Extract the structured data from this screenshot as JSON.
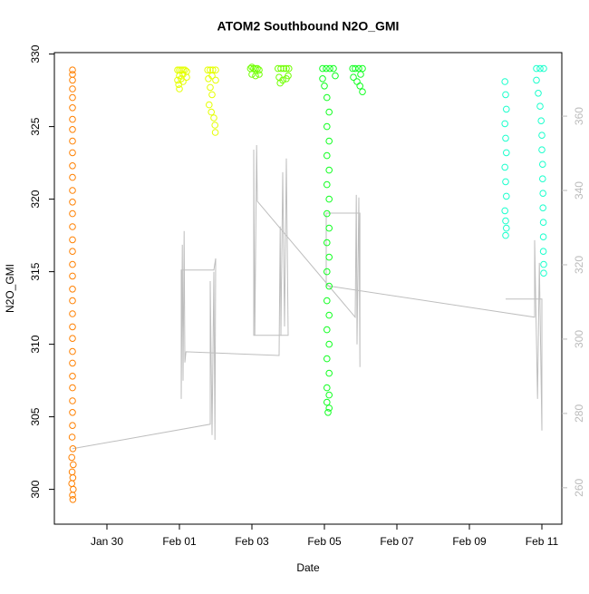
{
  "chart_data": {
    "type": "scatter",
    "title": "ATOM2 Southbound N2O_GMI",
    "x_label": "Date",
    "y_label": "N2O_GMI",
    "xlim": [
      28.55,
      42.55
    ],
    "xticks": [
      {
        "value": 30,
        "label": "Jan 30"
      },
      {
        "value": 32,
        "label": "Feb 01"
      },
      {
        "value": 34,
        "label": "Feb 03"
      },
      {
        "value": 36,
        "label": "Feb 05"
      },
      {
        "value": 38,
        "label": "Feb 07"
      },
      {
        "value": 40,
        "label": "Feb 09"
      },
      {
        "value": 42,
        "label": "Feb 11"
      }
    ],
    "ylim": [
      297.6,
      330.1
    ],
    "yticks": [
      300,
      305,
      310,
      315,
      320,
      325,
      330
    ],
    "y2lim": [
      250.2,
      377.1
    ],
    "y2ticks": [
      260,
      280,
      300,
      320,
      340,
      360
    ],
    "series": [
      {
        "color": "#FF8000",
        "x": [
          29.05,
          29.05,
          29.05,
          29.05,
          29.05,
          29.05,
          29.05,
          29.05,
          29.05,
          29.05,
          29.05,
          29.05,
          29.05,
          29.05,
          29.05,
          29.05,
          29.05,
          29.05,
          29.05,
          29.05,
          29.05,
          29.05,
          29.05,
          29.05,
          29.05,
          29.05,
          29.05,
          29.05,
          29.05,
          29.05,
          29.05,
          29.05,
          29.04,
          29.06,
          29.03,
          29.07,
          29.04,
          29.06,
          29.03,
          29.07,
          29.05,
          29.06
        ],
        "values": [
          328.9,
          328.6,
          328.2,
          327.6,
          327,
          326.3,
          325.5,
          324.8,
          324,
          323.2,
          322.3,
          321.5,
          320.6,
          319.8,
          319,
          318.1,
          317.2,
          316.4,
          315.5,
          314.7,
          313.8,
          313,
          312.1,
          311.2,
          310.4,
          309.5,
          308.7,
          307.8,
          307,
          306.1,
          305.3,
          304.4,
          303.6,
          302.8,
          302.2,
          301.7,
          301.2,
          300.8,
          300.4,
          300,
          299.6,
          299.3
        ]
      },
      {
        "color": "#E5FF00",
        "x": [
          31.95,
          32.0,
          32.05,
          32.1,
          32.15,
          32.2,
          32.0,
          32.05,
          32.1,
          31.98,
          32.0,
          32.1,
          32.2,
          31.95,
          32.78,
          32.85,
          32.92,
          33.0,
          32.8,
          32.85,
          32.9,
          32.82,
          32.88,
          32.95,
          32.98,
          32.99,
          33.0,
          32.9
        ],
        "values": [
          328.9,
          328.9,
          328.9,
          328.9,
          328.9,
          328.8,
          328.5,
          328.3,
          328.1,
          327.9,
          327.6,
          328.6,
          328.4,
          328.2,
          328.9,
          328.9,
          328.9,
          328.9,
          328.3,
          327.7,
          327.2,
          326.5,
          326,
          325.6,
          325.1,
          324.6,
          328.2,
          328.5
        ]
      },
      {
        "color": "#70FF00",
        "x": [
          33.96,
          34.0,
          34.05,
          34.1,
          34.15,
          34.2,
          34.0,
          34.1,
          34.2,
          34.72,
          34.8,
          34.88,
          34.95,
          35.02,
          34.75,
          34.85,
          34.95,
          35.0,
          34.78
        ],
        "values": [
          329,
          329.1,
          329,
          329,
          329,
          328.9,
          328.6,
          328.5,
          328.6,
          329,
          329,
          329,
          329,
          329,
          328.4,
          328.2,
          328.3,
          328.5,
          328.0
        ]
      },
      {
        "color": "#10FF20",
        "x": [
          35.95,
          36.05,
          36.15,
          36.25,
          35.95,
          36.3,
          36.0,
          36.07,
          36.13,
          36.07,
          36.13,
          36.07,
          36.13,
          36.07,
          36.13,
          36.07,
          36.13,
          36.07,
          36.13,
          36.07,
          36.13,
          36.07,
          36.13,
          36.07,
          36.13,
          36.07,
          36.13,
          36.07,
          36.13,
          36.07,
          36.13,
          36.1,
          36.78,
          36.85,
          36.95,
          37.05,
          36.8,
          36.9,
          36.98,
          37.05,
          37.0
        ],
        "values": [
          329,
          329,
          329,
          329,
          328.3,
          328.5,
          327.8,
          327,
          326,
          325,
          324,
          323,
          322,
          321,
          320,
          319,
          318,
          317,
          316,
          315,
          314,
          313,
          312,
          311,
          310,
          309,
          308,
          307,
          306.5,
          306,
          305.6,
          305.3,
          329,
          329,
          329,
          329,
          328.4,
          328.1,
          327.8,
          327.4,
          328.6
        ]
      },
      {
        "color": "#1AFFCC",
        "x": [
          40.98,
          41.0,
          41.02,
          40.98,
          41.0,
          41.02,
          40.98,
          41.0,
          41.02,
          40.98,
          41.0,
          41.02,
          41.0,
          41.85,
          41.95,
          42.05,
          41.85,
          41.9,
          41.95,
          41.98,
          42.0,
          42.0,
          42.02,
          42.02,
          42.03,
          42.03,
          42.04,
          42.04,
          42.04,
          42.05,
          42.05
        ],
        "values": [
          328.1,
          327.2,
          326.2,
          325.2,
          324.2,
          323.2,
          322.2,
          321.2,
          320.2,
          319.2,
          318.5,
          318,
          317.5,
          329,
          329,
          329,
          328.2,
          327.3,
          326.4,
          325.4,
          324.4,
          323.4,
          322.4,
          321.4,
          320.4,
          319.4,
          318.4,
          317.4,
          316.4,
          315.5,
          314.9
        ]
      },
      {
        "color": "#BEBEBE",
        "style": "line",
        "axis": "y2",
        "x": [
          29.05,
          32.85,
          32.85,
          32.9,
          32.95,
          32.98,
          33.0,
          32.95,
          32.05,
          32.05,
          32.08,
          32.1,
          32.13,
          32.15,
          32.18,
          34.75,
          34.78,
          34.8,
          34.85,
          34.9,
          34.95,
          35.0,
          34.05,
          34.05,
          34.08,
          34.13,
          34.15,
          36.85,
          36.88,
          36.9,
          36.95,
          36.98,
          36.98,
          36.05,
          36.05,
          41.8,
          41.8,
          41.88,
          41.93,
          42.0,
          42.0,
          41.0
        ],
        "values": [
          270.5,
          277.1,
          315.6,
          274.2,
          318.1,
          272.9,
          321.7,
          318.6,
          318.6,
          283.9,
          325.4,
          288.8,
          329.1,
          293.7,
          296.6,
          295.6,
          330.3,
          301.0,
          344.9,
          303.4,
          348.6,
          301.0,
          301.0,
          351.0,
          301.0,
          352.2,
          337.1,
          305.9,
          338.8,
          298.6,
          338.1,
          292.5,
          333.9,
          333.9,
          314.4,
          305.9,
          326.6,
          283.9,
          320.5,
          275.4,
          310.8,
          310.8
        ]
      }
    ]
  }
}
